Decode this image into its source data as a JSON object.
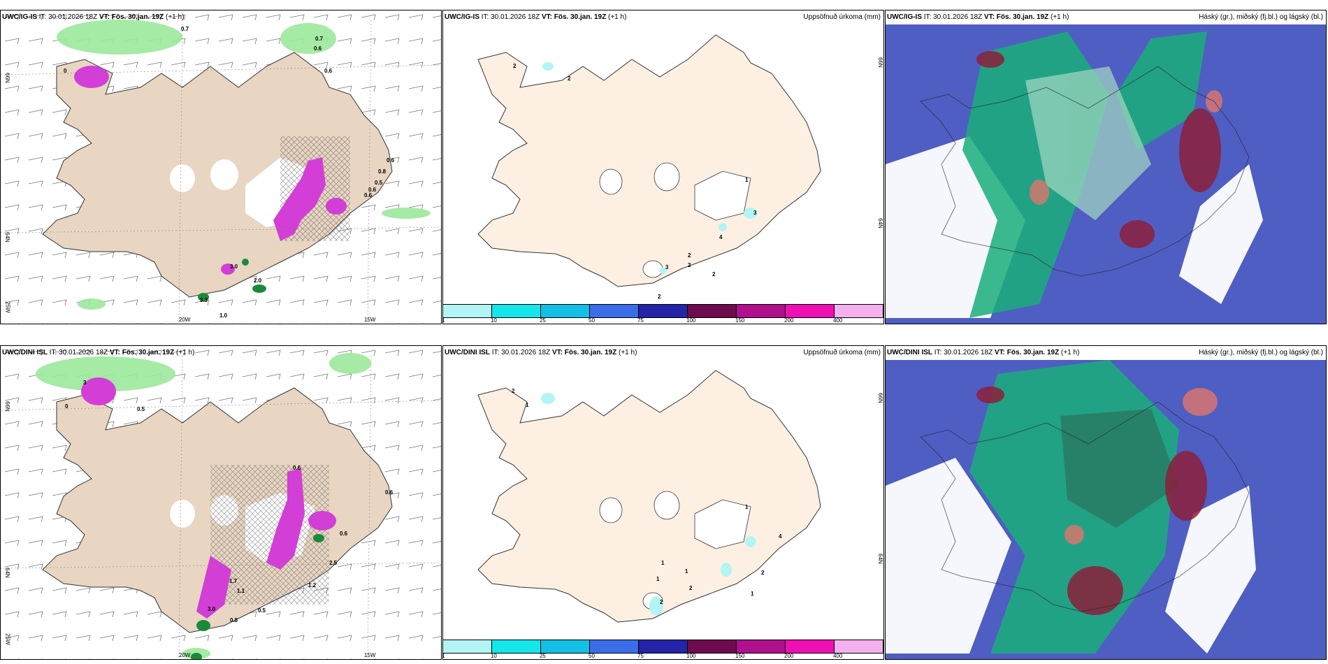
{
  "panels": [
    {
      "model": "UWC/IG-IS",
      "it_label": "IT:",
      "it_value": "30.01.2026 18Z",
      "vt_label": "VT:",
      "vt_value": "Fös. 30.jan. 19Z",
      "lead": "(+1 h)",
      "title_right": "",
      "values": [
        "0.7",
        "0.7",
        "0.6",
        "0.6",
        "0.6",
        "0.6",
        "0.8",
        "0.5",
        "0.6",
        "3.0",
        "2.0",
        "3.3",
        "1.0",
        "0"
      ],
      "lon_labels": [
        "20W",
        "15W"
      ],
      "lat_labels": [
        "66N",
        "64N",
        "25W"
      ]
    },
    {
      "model": "UWC/IG-IS",
      "it_label": "IT:",
      "it_value": "30.01.2026 18Z",
      "vt_label": "VT:",
      "vt_value": "Fös. 30.jan. 19Z",
      "lead": "(+1 h)",
      "title_right": "Uppsöfnuð úrkoma (mm)",
      "values": [
        "2",
        "2",
        "1",
        "3",
        "4",
        "2",
        "2",
        "3",
        "2",
        "2"
      ],
      "lat_labels": [
        "66N",
        "64N"
      ]
    },
    {
      "model": "UWC/IG-IS",
      "it_label": "IT:",
      "it_value": "30.01.2026 18Z",
      "vt_label": "VT:",
      "vt_value": "Fös. 30.jan. 19Z",
      "lead": "(+1 h)",
      "title_right": "Háský (gr.), miðský (fj.bl.) og lágský (bl.)"
    },
    {
      "model": "UWC/DINI ISL",
      "it_label": "IT:",
      "it_value": "30.01.2026 18Z",
      "vt_label": "VT:",
      "vt_value": "Fös. 30.jan. 19Z",
      "lead": "(+1 h)",
      "title_right": "",
      "values": [
        "3",
        "0.5",
        "0.6",
        "0.6",
        "1.7",
        "1.1",
        "1.2",
        "0.8",
        "0.5",
        "2.5",
        "0.6",
        "3.0",
        "0"
      ],
      "lon_labels": [
        "20W",
        "15W"
      ],
      "lat_labels": [
        "66N",
        "64N",
        "25W"
      ]
    },
    {
      "model": "UWC/DINI ISL",
      "it_label": "IT:",
      "it_value": "30.01.2026 18Z",
      "vt_label": "VT:",
      "vt_value": "Fös. 30.jan. 19Z",
      "lead": "(+1 h)",
      "title_right": "Uppsöfnuð úrkoma (mm)",
      "values": [
        "2",
        "1",
        "1",
        "1",
        "1",
        "1",
        "2",
        "2",
        "2",
        "1",
        "4"
      ],
      "lat_labels": [
        "66N",
        "64N"
      ]
    },
    {
      "model": "UWC/DINI ISL",
      "it_label": "IT:",
      "it_value": "30.01.2026 18Z",
      "vt_label": "VT:",
      "vt_value": "Fös. 30.jan. 19Z",
      "lead": "(+1 h)",
      "title_right": "Háský (gr.), miðský (fj.bl.) og lágský (bl.)"
    }
  ],
  "precip_legend": {
    "colors": [
      "#b3f5f5",
      "#14e6ea",
      "#14bfe6",
      "#3a6ee8",
      "#2424a8",
      "#6e0a4e",
      "#b0108e",
      "#ee10b4",
      "#f5b0f0"
    ],
    "labels": [
      "1",
      "10",
      "25",
      "50",
      "75",
      "100",
      "150",
      "200",
      "400"
    ]
  },
  "colors": {
    "land": "#e8d5c2",
    "land_light": "#fdf0e2",
    "snow": "#d23ed6",
    "rain_green": "#7de07d",
    "cloud_high": "#4f5ec2",
    "cloud_mid": "#1aae7a",
    "cloud_low": "#c4d8cf"
  }
}
